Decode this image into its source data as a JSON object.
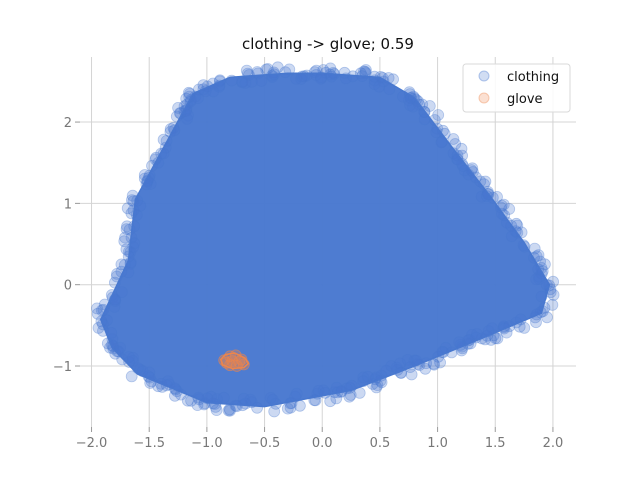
{
  "chart_data": {
    "type": "scatter",
    "title": "clothing -> glove; 0.59",
    "xlabel": "",
    "ylabel": "",
    "xlim": [
      -2.1,
      2.2
    ],
    "ylim": [
      -1.75,
      2.8
    ],
    "xticks": [
      -2.0,
      -1.5,
      -1.0,
      -0.5,
      0.0,
      0.5,
      1.0,
      1.5,
      2.0
    ],
    "xtick_labels": [
      "−2.0",
      "−1.5",
      "−1.0",
      "−0.5",
      "0.0",
      "0.5",
      "1.0",
      "1.5",
      "2.0"
    ],
    "yticks": [
      -1,
      0,
      1,
      2
    ],
    "ytick_labels": [
      "−1",
      "0",
      "1",
      "2"
    ],
    "grid": true,
    "legend_position": "top-right",
    "series": [
      {
        "name": "clothing",
        "color": "#4878cf",
        "hull": [
          [
            -1.62,
            1.05
          ],
          [
            -1.12,
            2.35
          ],
          [
            -0.8,
            2.55
          ],
          [
            -0.3,
            2.6
          ],
          [
            0.0,
            2.6
          ],
          [
            0.5,
            2.55
          ],
          [
            0.8,
            2.3
          ],
          [
            1.12,
            1.7
          ],
          [
            1.45,
            1.1
          ],
          [
            1.75,
            0.52
          ],
          [
            1.97,
            0.0
          ],
          [
            1.9,
            -0.35
          ],
          [
            1.4,
            -0.65
          ],
          [
            0.8,
            -1.0
          ],
          [
            0.25,
            -1.3
          ],
          [
            -0.5,
            -1.5
          ],
          [
            -1.0,
            -1.45
          ],
          [
            -1.6,
            -1.1
          ],
          [
            -1.82,
            -0.78
          ],
          [
            -1.92,
            -0.43
          ],
          [
            -1.68,
            0.3
          ]
        ]
      },
      {
        "name": "glove",
        "color": "#ee854a",
        "hull": [
          [
            -0.88,
            -0.92
          ],
          [
            -0.84,
            -0.86
          ],
          [
            -0.76,
            -0.84
          ],
          [
            -0.67,
            -0.9
          ],
          [
            -0.64,
            -0.97
          ],
          [
            -0.68,
            -1.02
          ],
          [
            -0.78,
            -1.03
          ],
          [
            -0.86,
            -0.99
          ]
        ],
        "points": [
          [
            -0.85,
            -0.93
          ],
          [
            -0.8,
            -0.88
          ],
          [
            -0.75,
            -0.87
          ],
          [
            -0.7,
            -0.92
          ],
          [
            -0.68,
            -0.98
          ],
          [
            -0.74,
            -1.0
          ],
          [
            -0.8,
            -0.99
          ],
          [
            -0.78,
            -0.94
          ],
          [
            -0.72,
            -0.95
          ],
          [
            -0.83,
            -0.96
          ]
        ]
      }
    ]
  }
}
